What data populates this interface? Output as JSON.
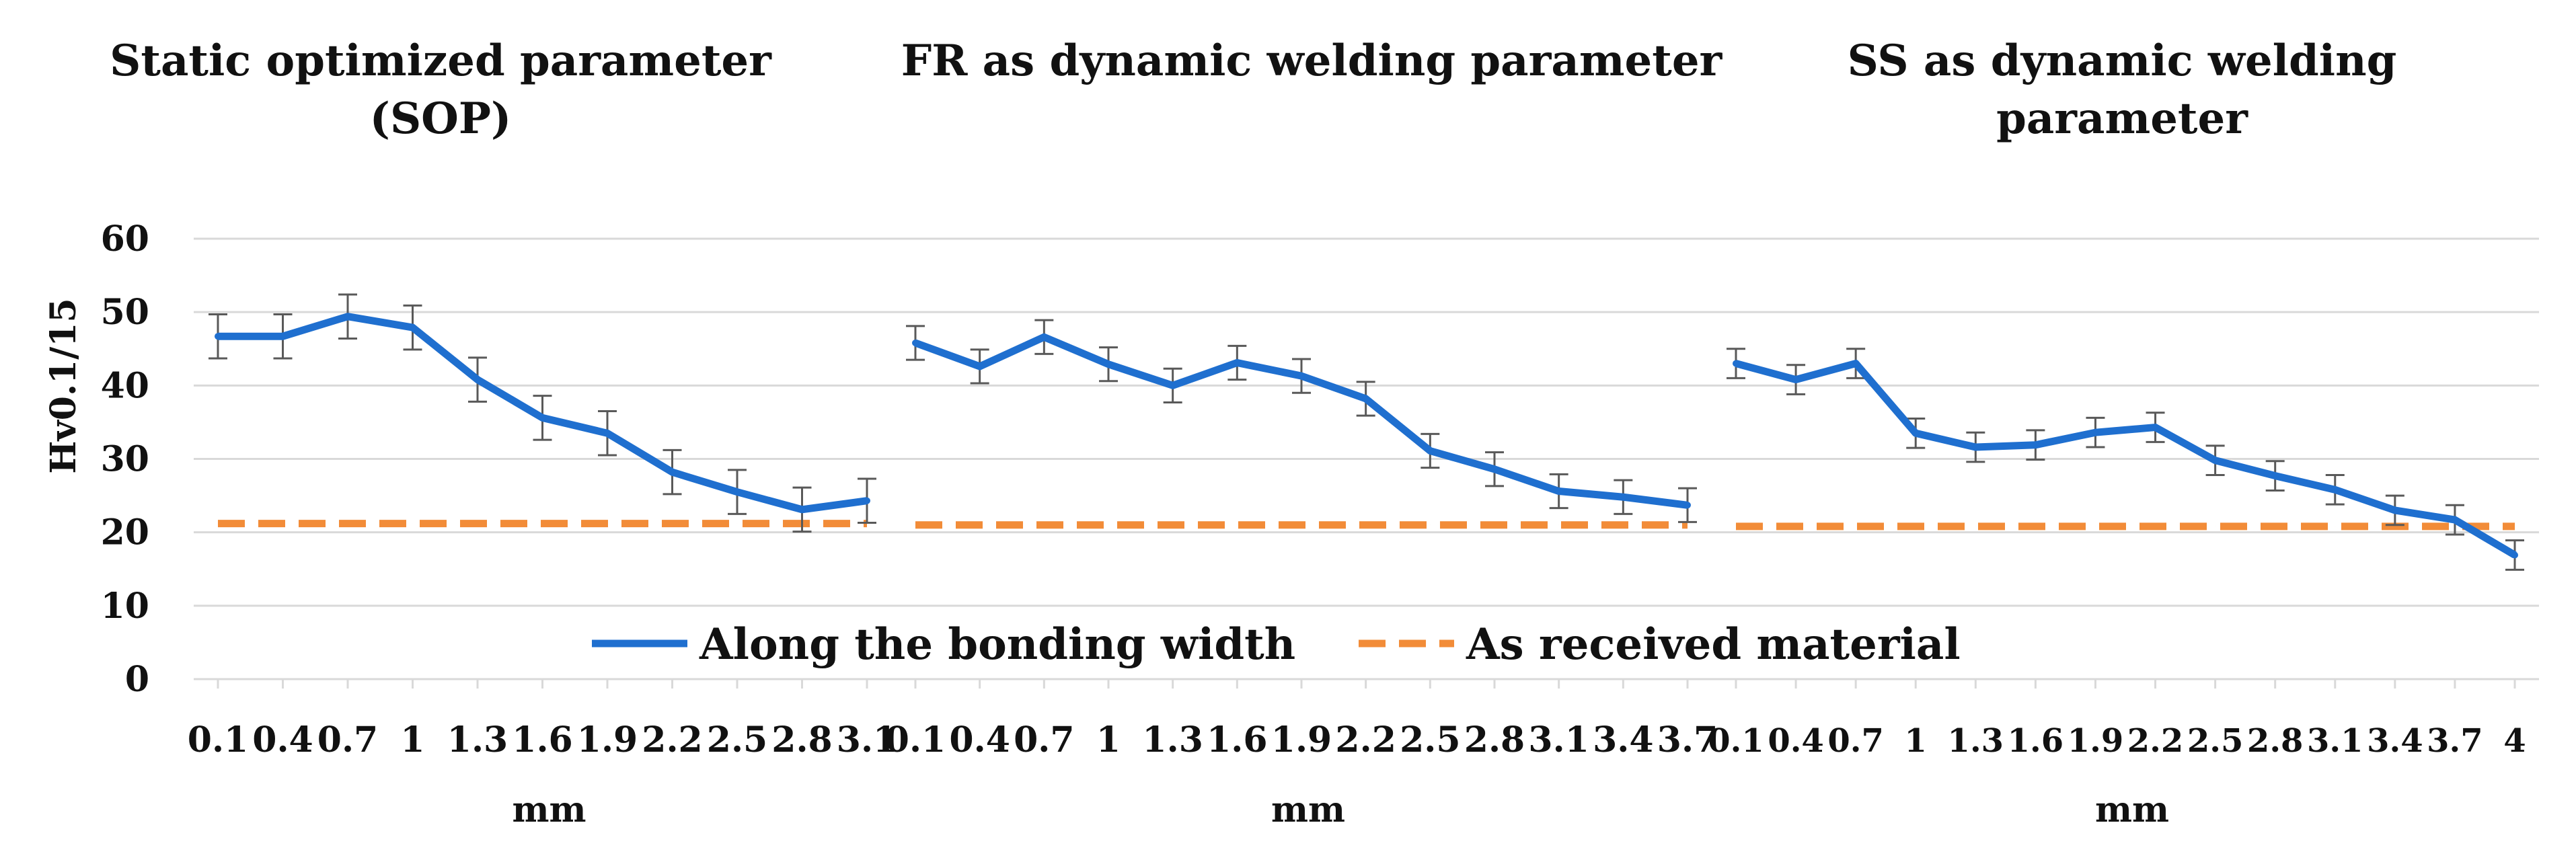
{
  "ylabel": "Hv0.1/15",
  "legend": {
    "series1": "Along the bonding width",
    "series2": "As received material"
  },
  "colors": {
    "series1": "#1f6fcf",
    "series2": "#f28c38",
    "grid": "#d9d9d9",
    "error": "#595959"
  },
  "chart_data": [
    {
      "type": "line",
      "title": "Static optimized parameter (SOP)",
      "title_lines": [
        "Static optimized parameter",
        "(SOP)"
      ],
      "xlabel": "mm",
      "ylabel": "Hv0.1/15",
      "ylim": [
        0,
        60
      ],
      "yticks": [
        "0",
        "10",
        "20",
        "30",
        "40",
        "50",
        "60"
      ],
      "grid": true,
      "categories": [
        "0.1",
        "0.4",
        "0.7",
        "1",
        "1.3",
        "1.6",
        "1.9",
        "2.2",
        "2.5",
        "2.8",
        "3.1"
      ],
      "series": [
        {
          "name": "Along the bonding width",
          "values": [
            46.7,
            46.7,
            49.4,
            47.9,
            40.8,
            35.6,
            33.5,
            28.2,
            25.5,
            23.1,
            24.3
          ],
          "error": [
            3.0,
            3.0,
            3.0,
            3.0,
            3.0,
            3.0,
            3.0,
            3.0,
            3.0,
            3.0,
            3.0
          ]
        },
        {
          "name": "As received material",
          "values": [
            21.2,
            21.2,
            21.2,
            21.2,
            21.2,
            21.2,
            21.2,
            21.2,
            21.2,
            21.2,
            21.2
          ]
        }
      ]
    },
    {
      "type": "line",
      "title": "FR as dynamic welding parameter",
      "title_lines": [
        "FR as dynamic welding parameter"
      ],
      "xlabel": "mm",
      "ylabel": "Hv0.1/15",
      "ylim": [
        0,
        60
      ],
      "grid": true,
      "categories": [
        "0.1",
        "0.4",
        "0.7",
        "1",
        "1.3",
        "1.6",
        "1.9",
        "2.2",
        "2.5",
        "2.8",
        "3.1",
        "3.4",
        "3.7"
      ],
      "series": [
        {
          "name": "Along the bonding width",
          "values": [
            45.8,
            42.6,
            46.6,
            42.9,
            40.0,
            43.1,
            41.3,
            38.2,
            31.1,
            28.6,
            25.6,
            24.8,
            23.7
          ],
          "error": [
            2.3,
            2.3,
            2.3,
            2.3,
            2.3,
            2.3,
            2.3,
            2.3,
            2.3,
            2.3,
            2.3,
            2.3,
            2.3
          ]
        },
        {
          "name": "As received material",
          "values": [
            21.0,
            21.0,
            21.0,
            21.0,
            21.0,
            21.0,
            21.0,
            21.0,
            21.0,
            21.0,
            21.0,
            21.0,
            21.0
          ]
        }
      ]
    },
    {
      "type": "line",
      "title": "SS as dynamic welding parameter",
      "title_lines": [
        "SS as dynamic welding",
        "parameter"
      ],
      "xlabel": "mm",
      "ylabel": "Hv0.1/15",
      "ylim": [
        0,
        60
      ],
      "grid": true,
      "categories": [
        "0.1",
        "0.4",
        "0.7",
        "1",
        "1.3",
        "1.6",
        "1.9",
        "2.2",
        "2.5",
        "2.8",
        "3.1",
        "3.4",
        "3.7",
        "4"
      ],
      "series": [
        {
          "name": "Along the bonding width",
          "values": [
            43.0,
            40.8,
            43.0,
            33.5,
            31.6,
            31.9,
            33.6,
            34.3,
            29.8,
            27.7,
            25.8,
            23.0,
            21.7,
            16.9
          ],
          "error": [
            2.0,
            2.0,
            2.0,
            2.0,
            2.0,
            2.0,
            2.0,
            2.0,
            2.0,
            2.0,
            2.0,
            2.0,
            2.0,
            2.0
          ]
        },
        {
          "name": "As received material",
          "values": [
            20.8,
            20.8,
            20.8,
            20.8,
            20.8,
            20.8,
            20.8,
            20.8,
            20.8,
            20.8,
            20.8,
            20.8,
            20.8,
            20.8
          ]
        }
      ]
    }
  ]
}
